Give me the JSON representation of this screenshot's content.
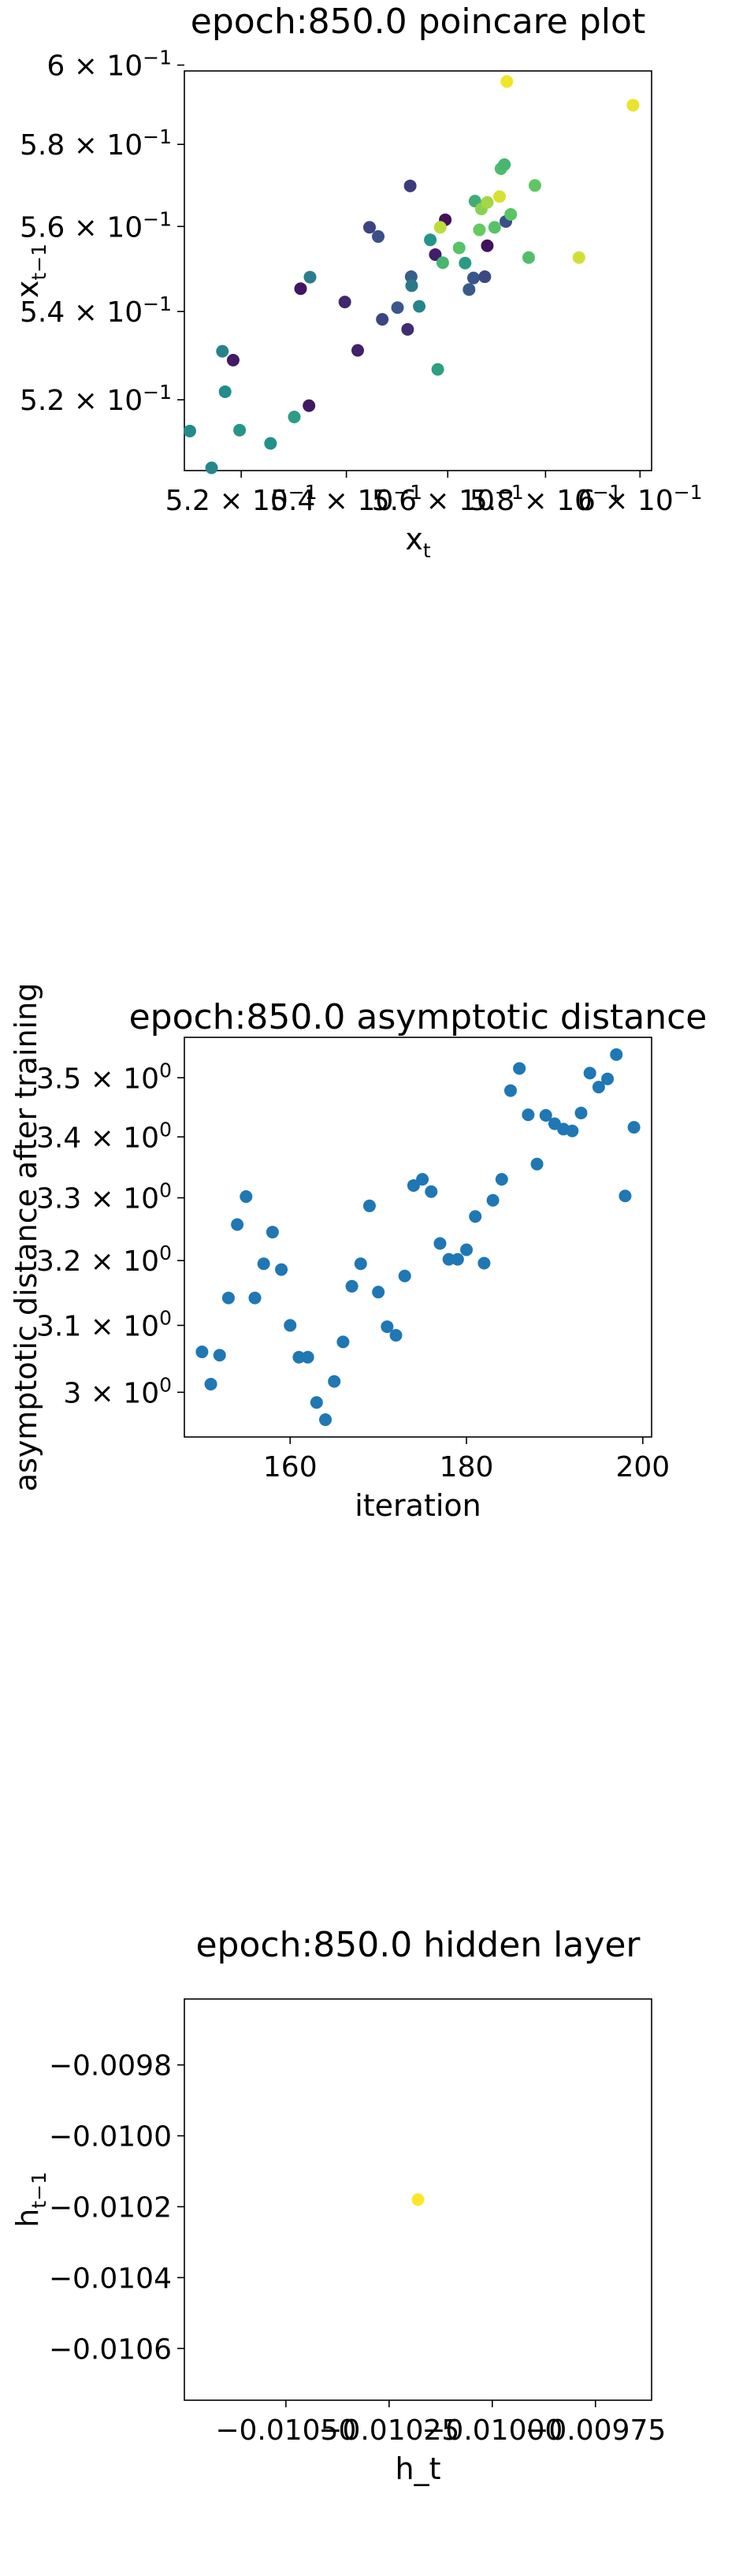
{
  "chart_data": [
    {
      "type": "scatter",
      "title": "epoch:850.0 poincare plot",
      "xlabel": "x",
      "xlabel_sub": "t",
      "ylabel": "x",
      "ylabel_sub": "t−1",
      "log_scale": true,
      "colormap": "viridis",
      "xlim": [
        0.5095,
        0.6025
      ],
      "ylim": [
        0.5045,
        0.5985
      ],
      "x_ticks": [
        {
          "value": 0.52,
          "mantissa": "5.2",
          "times": "×",
          "base": "10",
          "exp": "−1"
        },
        {
          "value": 0.54,
          "mantissa": "5.4",
          "times": "×",
          "base": "10",
          "exp": "−1"
        },
        {
          "value": 0.56,
          "mantissa": "5.6",
          "times": "×",
          "base": "10",
          "exp": "−1"
        },
        {
          "value": 0.58,
          "mantissa": "5.8",
          "times": "×",
          "base": "10",
          "exp": "−1"
        },
        {
          "value": 0.6,
          "mantissa": "6",
          "times": "×",
          "base": "10",
          "exp": "−1"
        }
      ],
      "y_ticks": [
        {
          "value": 0.52,
          "mantissa": "5.2",
          "times": "×",
          "base": "10",
          "exp": "−1"
        },
        {
          "value": 0.54,
          "mantissa": "5.4",
          "times": "×",
          "base": "10",
          "exp": "−1"
        },
        {
          "value": 0.56,
          "mantissa": "5.6",
          "times": "×",
          "base": "10",
          "exp": "−1"
        },
        {
          "value": 0.58,
          "mantissa": "5.8",
          "times": "×",
          "base": "10",
          "exp": "−1"
        },
        {
          "value": 0.6,
          "mantissa": "6",
          "times": "×",
          "base": "10",
          "exp": "−1"
        }
      ],
      "points": [
        {
          "x": 0.5185,
          "y": 0.5289,
          "c": 0.08
        },
        {
          "x": 0.5312,
          "y": 0.5453,
          "c": 0.06
        },
        {
          "x": 0.5328,
          "y": 0.5187,
          "c": 0.07
        },
        {
          "x": 0.5397,
          "y": 0.5422,
          "c": 0.12
        },
        {
          "x": 0.5422,
          "y": 0.5311,
          "c": 0.1
        },
        {
          "x": 0.5445,
          "y": 0.5598,
          "c": 0.2
        },
        {
          "x": 0.547,
          "y": 0.5382,
          "c": 0.21
        },
        {
          "x": 0.5462,
          "y": 0.5576,
          "c": 0.24
        },
        {
          "x": 0.55,
          "y": 0.5409,
          "c": 0.27
        },
        {
          "x": 0.552,
          "y": 0.5359,
          "c": 0.14
        },
        {
          "x": 0.5525,
          "y": 0.5698,
          "c": 0.18
        },
        {
          "x": 0.5527,
          "y": 0.5481,
          "c": 0.3
        },
        {
          "x": 0.5528,
          "y": 0.546,
          "c": 0.4
        },
        {
          "x": 0.5575,
          "y": 0.5533,
          "c": 0.09
        },
        {
          "x": 0.5595,
          "y": 0.5616,
          "c": 0.04
        },
        {
          "x": 0.5643,
          "y": 0.5451,
          "c": 0.28
        },
        {
          "x": 0.5652,
          "y": 0.5478,
          "c": 0.26
        },
        {
          "x": 0.5675,
          "y": 0.5481,
          "c": 0.22
        },
        {
          "x": 0.568,
          "y": 0.5554,
          "c": 0.05
        },
        {
          "x": 0.5718,
          "y": 0.5612,
          "c": 0.24
        },
        {
          "x": 0.5543,
          "y": 0.5412,
          "c": 0.45
        },
        {
          "x": 0.5565,
          "y": 0.5568,
          "c": 0.52
        },
        {
          "x": 0.558,
          "y": 0.5268,
          "c": 0.56
        },
        {
          "x": 0.559,
          "y": 0.5514,
          "c": 0.66
        },
        {
          "x": 0.5623,
          "y": 0.5549,
          "c": 0.72
        },
        {
          "x": 0.5635,
          "y": 0.5513,
          "c": 0.54
        },
        {
          "x": 0.5655,
          "y": 0.5661,
          "c": 0.62
        },
        {
          "x": 0.5664,
          "y": 0.5592,
          "c": 0.76
        },
        {
          "x": 0.5668,
          "y": 0.5642,
          "c": 0.82
        },
        {
          "x": 0.5695,
          "y": 0.5598,
          "c": 0.72
        },
        {
          "x": 0.5708,
          "y": 0.574,
          "c": 0.69
        },
        {
          "x": 0.5715,
          "y": 0.575,
          "c": 0.66
        },
        {
          "x": 0.5728,
          "y": 0.5629,
          "c": 0.73
        },
        {
          "x": 0.5765,
          "y": 0.5526,
          "c": 0.7
        },
        {
          "x": 0.5778,
          "y": 0.5699,
          "c": 0.74
        },
        {
          "x": 0.5585,
          "y": 0.5598,
          "c": 0.9
        },
        {
          "x": 0.568,
          "y": 0.5658,
          "c": 0.86
        },
        {
          "x": 0.5705,
          "y": 0.5672,
          "c": 0.94
        },
        {
          "x": 0.572,
          "y": 0.5958,
          "c": 0.98
        },
        {
          "x": 0.587,
          "y": 0.5526,
          "c": 0.93
        },
        {
          "x": 0.5985,
          "y": 0.5898,
          "c": 0.97
        },
        {
          "x": 0.5105,
          "y": 0.5131,
          "c": 0.47
        },
        {
          "x": 0.5145,
          "y": 0.5051,
          "c": 0.46
        },
        {
          "x": 0.5165,
          "y": 0.5309,
          "c": 0.44
        },
        {
          "x": 0.517,
          "y": 0.5218,
          "c": 0.48
        },
        {
          "x": 0.5197,
          "y": 0.5133,
          "c": 0.52
        },
        {
          "x": 0.5255,
          "y": 0.5104,
          "c": 0.5
        },
        {
          "x": 0.53,
          "y": 0.5162,
          "c": 0.55
        },
        {
          "x": 0.533,
          "y": 0.548,
          "c": 0.42
        }
      ]
    },
    {
      "type": "scatter",
      "title": "epoch:850.0 asymptotic distance",
      "xlabel": "iteration",
      "ylabel": "asymptotic distance after training",
      "log_scale_y": true,
      "color": "#1f77b4",
      "xlim": [
        148,
        201
      ],
      "ylim": [
        2.935,
        3.57
      ],
      "x_ticks": [
        {
          "value": 160,
          "label": "160"
        },
        {
          "value": 180,
          "label": "180"
        },
        {
          "value": 200,
          "label": "200"
        }
      ],
      "y_ticks": [
        {
          "value": 3.0,
          "mantissa": "3",
          "times": "×",
          "base": "10",
          "exp": "0"
        },
        {
          "value": 3.1,
          "mantissa": "3.1",
          "times": "×",
          "base": "10",
          "exp": "0"
        },
        {
          "value": 3.2,
          "mantissa": "3.2",
          "times": "×",
          "base": "10",
          "exp": "0"
        },
        {
          "value": 3.3,
          "mantissa": "3.3",
          "times": "×",
          "base": "10",
          "exp": "0"
        },
        {
          "value": 3.4,
          "mantissa": "3.4",
          "times": "×",
          "base": "10",
          "exp": "0"
        },
        {
          "value": 3.5,
          "mantissa": "3.5",
          "times": "×",
          "base": "10",
          "exp": "0"
        }
      ],
      "x": [
        150,
        151,
        152,
        153,
        154,
        155,
        156,
        157,
        158,
        159,
        160,
        161,
        162,
        163,
        164,
        165,
        166,
        167,
        168,
        169,
        170,
        171,
        172,
        173,
        174,
        175,
        176,
        177,
        178,
        179,
        180,
        181,
        182,
        183,
        184,
        185,
        186,
        187,
        188,
        189,
        190,
        191,
        192,
        193,
        194,
        195,
        196,
        197,
        198,
        199
      ],
      "y": [
        3.06,
        3.012,
        3.055,
        3.142,
        3.257,
        3.302,
        3.142,
        3.195,
        3.245,
        3.186,
        3.1,
        3.052,
        3.052,
        2.985,
        2.96,
        3.016,
        3.075,
        3.16,
        3.195,
        3.287,
        3.151,
        3.098,
        3.085,
        3.176,
        3.32,
        3.33,
        3.31,
        3.227,
        3.202,
        3.202,
        3.217,
        3.27,
        3.196,
        3.296,
        3.33,
        3.478,
        3.516,
        3.437,
        3.355,
        3.436,
        3.422,
        3.413,
        3.41,
        3.44,
        3.508,
        3.484,
        3.498,
        3.54,
        3.303,
        3.416
      ]
    },
    {
      "type": "scatter",
      "title": "epoch:850.0 hidden layer",
      "xlabel": "h_t",
      "ylabel": "h",
      "ylabel_sub": "t−1",
      "xlim": [
        -0.010746,
        -0.009614
      ],
      "ylim": [
        -0.010746,
        -0.009614
      ],
      "x_ticks": [
        {
          "value": -0.0105,
          "label": "−0.01050"
        },
        {
          "value": -0.01025,
          "label": "−0.01025"
        },
        {
          "value": -0.01,
          "label": "−0.01000"
        },
        {
          "value": -0.00975,
          "label": "−0.00975"
        }
      ],
      "y_ticks": [
        {
          "value": -0.0098,
          "label": "−0.0098"
        },
        {
          "value": -0.01,
          "label": "−0.0100"
        },
        {
          "value": -0.0102,
          "label": "−0.0102"
        },
        {
          "value": -0.0104,
          "label": "−0.0104"
        },
        {
          "value": -0.0106,
          "label": "−0.0106"
        }
      ],
      "points": [
        {
          "x": -0.01018,
          "y": -0.01018
        }
      ],
      "color": "#fde725"
    }
  ]
}
